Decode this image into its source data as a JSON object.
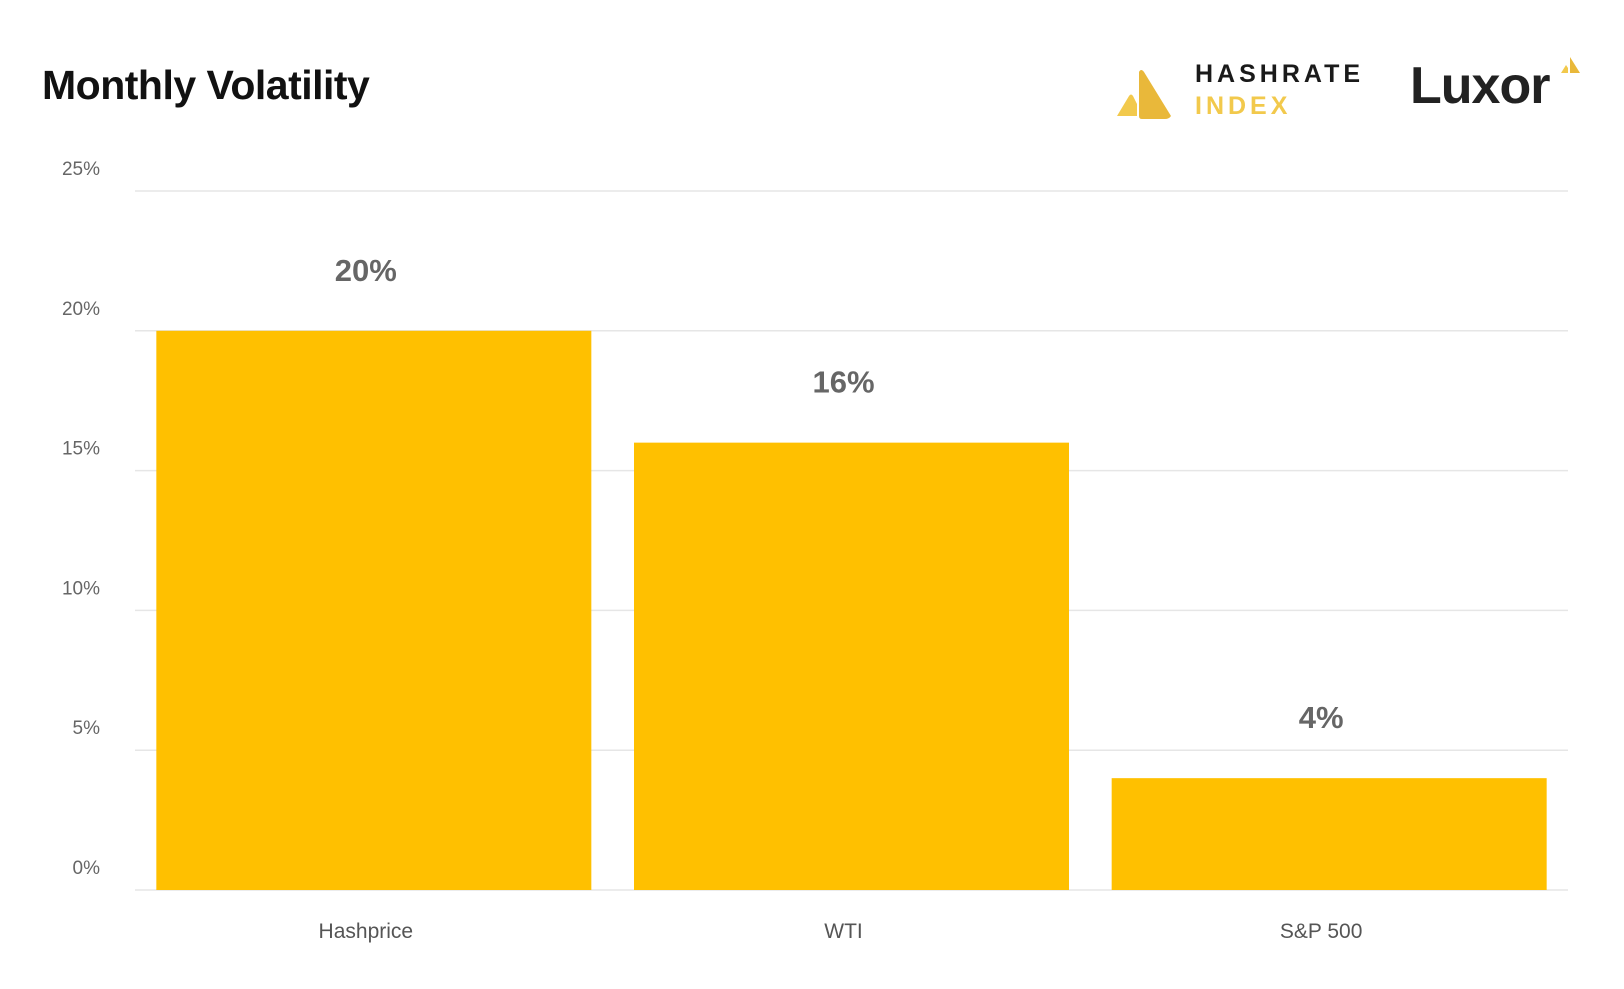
{
  "header": {
    "title": "Monthly Volatility",
    "brand_line1": "HASHRATE",
    "brand_line2": "INDEX",
    "brand2": "Luxor"
  },
  "colors": {
    "bar": "#FFC000",
    "grid": "#e6e6e6",
    "brand_gold": "#F2C94C"
  },
  "chart_data": {
    "type": "bar",
    "title": "Monthly Volatility",
    "categories": [
      "Hashprice",
      "WTI",
      "S&P 500"
    ],
    "values": [
      20,
      16,
      4
    ],
    "data_labels": [
      "20%",
      "16%",
      "4%"
    ],
    "y_ticks": [
      0,
      5,
      10,
      15,
      20,
      25
    ],
    "y_tick_labels": [
      "0%",
      "5%",
      "10%",
      "15%",
      "20%",
      "25%"
    ],
    "ylim": [
      0,
      25
    ],
    "grid": true,
    "legend": "none"
  }
}
